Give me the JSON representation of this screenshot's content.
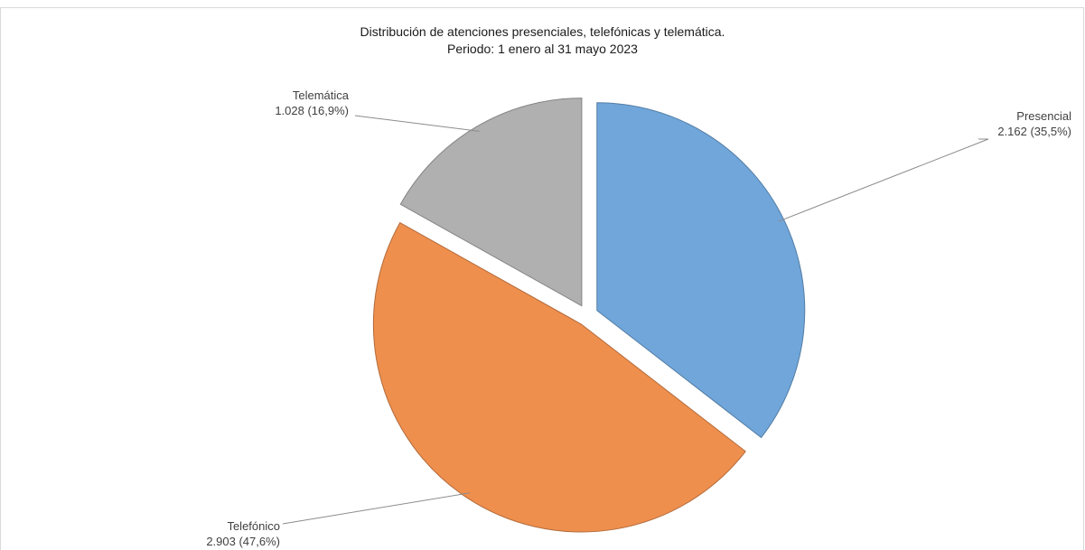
{
  "chart_data": {
    "type": "pie",
    "title": "Distribución de atenciones presenciales, telefónicas y telemática.",
    "subtitle": "Periodo: 1 enero al 31 mayo 2023",
    "slices": [
      {
        "name": "Presencial",
        "value": 2162,
        "value_label": "2.162",
        "percent_label": "35,5%",
        "color": "#70a6da"
      },
      {
        "name": "Telefónico",
        "value": 2903,
        "value_label": "2.903",
        "percent_label": "47,6%",
        "color": "#ee8f4e"
      },
      {
        "name": "Telemática",
        "value": 1028,
        "value_label": "1.028",
        "percent_label": "16,9%",
        "color": "#b0b0b0"
      }
    ],
    "legend": "none",
    "start_angle": "12 o'clock, clockwise",
    "exploded": true
  }
}
